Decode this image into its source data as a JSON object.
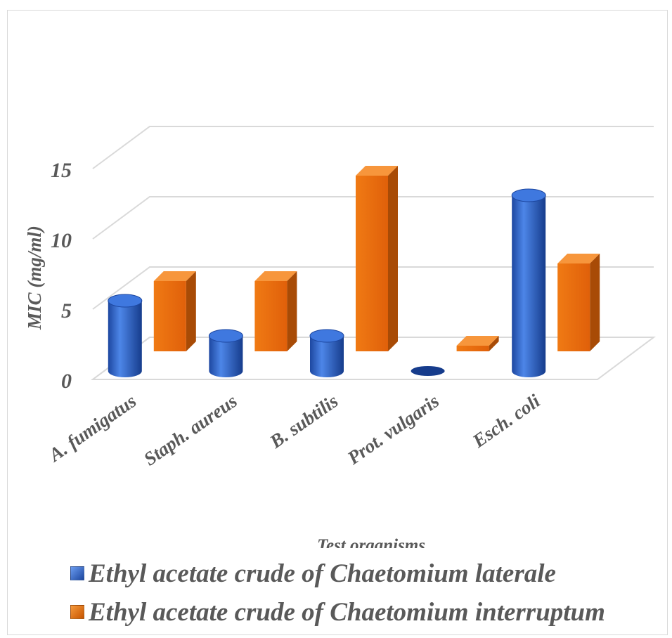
{
  "chart_data": {
    "type": "bar",
    "style": "3d",
    "categories": [
      "A. fumigatus",
      "Staph. aureus",
      "B. subtilis",
      "Prot. vulgaris",
      "Esch. coli"
    ],
    "series": [
      {
        "name": "Ethyl acetate crude of Chaetomium laterale",
        "shape": "cylinder",
        "color": "#2f63c6",
        "values": [
          5.0,
          2.5,
          2.5,
          0,
          12.5
        ]
      },
      {
        "name": "Ethyl acetate crude of Chaetomium interruptum",
        "shape": "box",
        "color": "#e46c0a",
        "values": [
          5.0,
          5.0,
          12.5,
          0.4,
          6.25
        ]
      }
    ],
    "title": "",
    "xlabel": "Test organisms",
    "ylabel": "MIC (mg/ml)",
    "ylim": [
      0,
      20
    ],
    "yticks": [
      0,
      5,
      10,
      15
    ],
    "grid": true,
    "legend_position": "bottom"
  }
}
